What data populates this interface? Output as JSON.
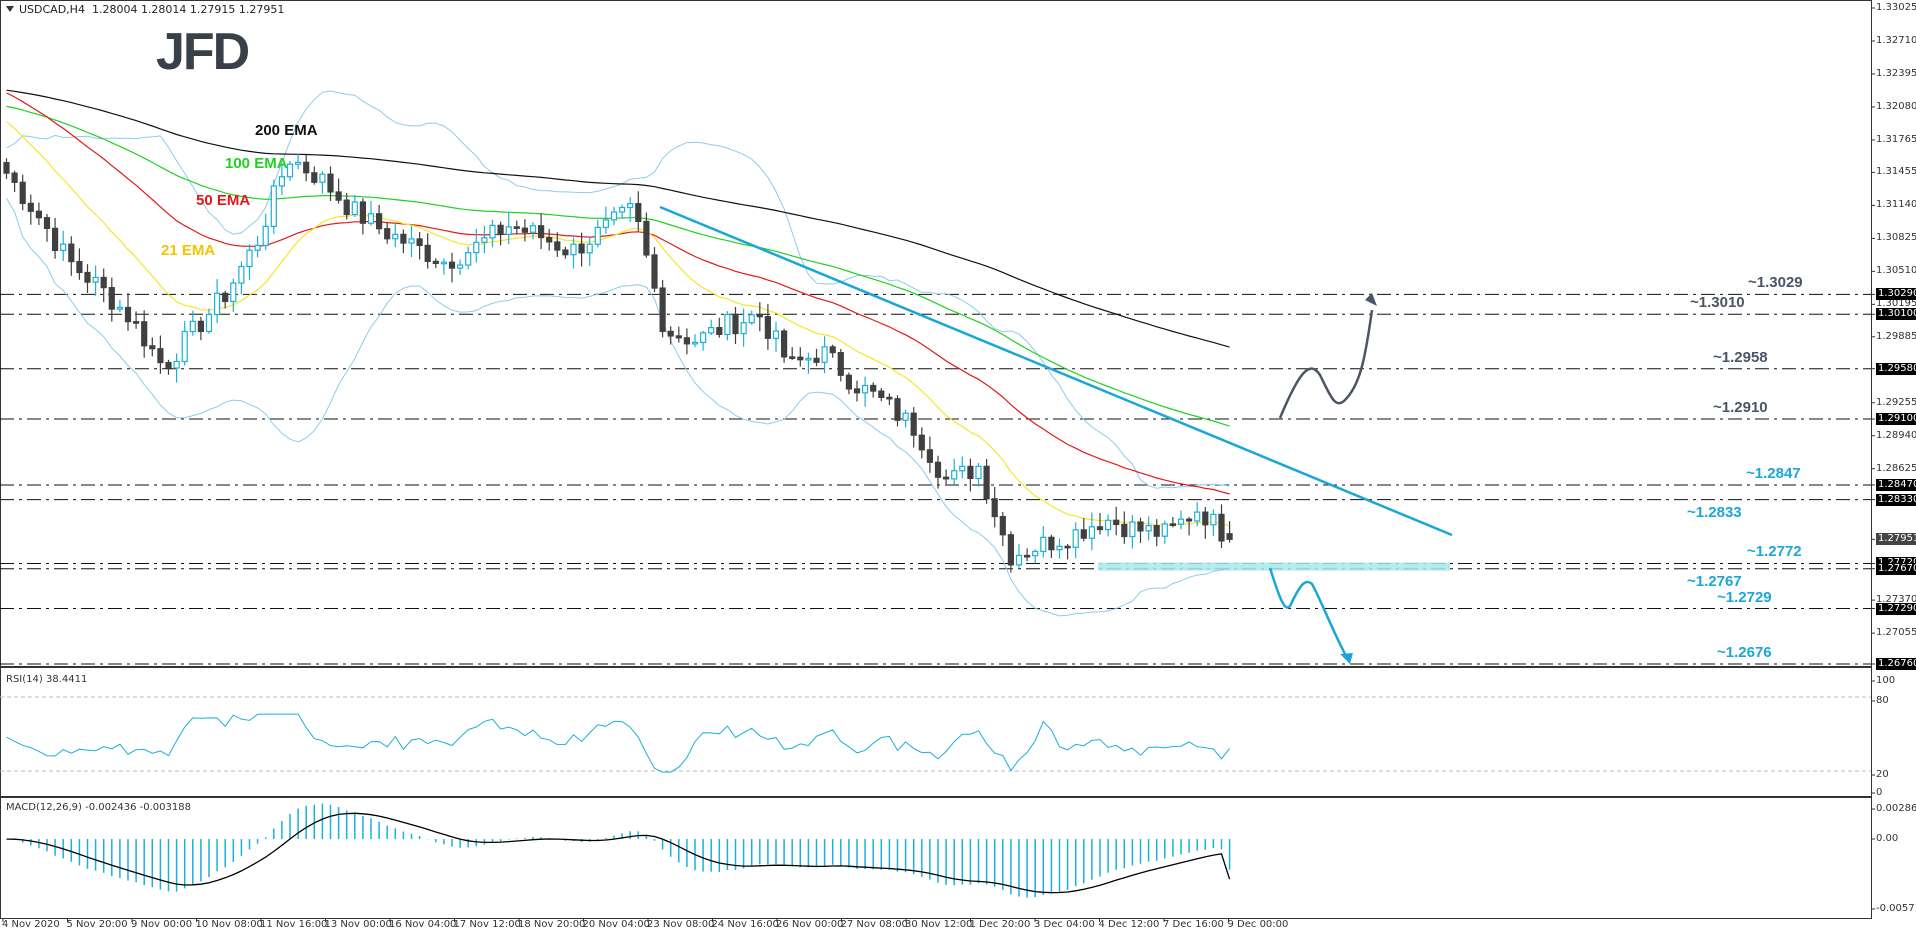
{
  "header": {
    "symbol": "USDCAD,H4",
    "ohlc": "1.28004 1.28014 1.27915 1.27951"
  },
  "logo": "JFD",
  "colors": {
    "bull": "#1ab0d8",
    "bear": "#404040",
    "ema21": "#f5e52a",
    "ema50": "#e11919",
    "ema100": "#22d022",
    "ema200": "#111111",
    "bands": "#8ecbec",
    "trendline": "#1aa7d6",
    "levels_gray": "#4b5563",
    "levels_blue": "#1aa7d6",
    "zone": "#a8e8ec",
    "rsi": "#1ab0d8",
    "macd_hist": "#1ab0d8",
    "macd_signal": "#000000"
  },
  "price_axis": {
    "ticks": [
      "1.33025",
      "1.32710",
      "1.32395",
      "1.32080",
      "1.31765",
      "1.31455",
      "1.31140",
      "1.30825",
      "1.30510",
      "1.30195",
      "1.29885",
      "1.29255",
      "1.28940",
      "1.28625",
      "1.27370",
      "1.27055"
    ],
    "boxes": [
      "1.30290",
      "1.30100",
      "1.29580",
      "1.29100",
      "1.28470",
      "1.28330",
      "1.27720",
      "1.27670",
      "1.27290",
      "1.26760"
    ],
    "current": "1.27951"
  },
  "rsi_pane": {
    "label": "RSI(14) 38.4411",
    "ticks": [
      "100",
      "80",
      "20",
      "0"
    ]
  },
  "macd_pane": {
    "label": "MACD(12,26,9) -0.002436 -0.003188",
    "ticks": [
      "0.002864",
      "0.00",
      "-0.005716"
    ]
  },
  "time_axis": [
    "4 Nov 2020",
    "5 Nov 20:00",
    "9 Nov 00:00",
    "10 Nov 08:00",
    "11 Nov 16:00",
    "13 Nov 00:00",
    "16 Nov 04:00",
    "17 Nov 12:00",
    "18 Nov 20:00",
    "20 Nov 04:00",
    "23 Nov 08:00",
    "24 Nov 16:00",
    "26 Nov 00:00",
    "27 Nov 08:00",
    "30 Nov 12:00",
    "1 Dec 20:00",
    "3 Dec 04:00",
    "4 Dec 12:00",
    "7 Dec 16:00",
    "9 Dec 00:00"
  ],
  "annotations": {
    "ema200": "200 EMA",
    "ema100": "100 EMA",
    "ema50": "50 EMA",
    "ema21": "21 EMA",
    "levels": [
      {
        "label": "~1.3029",
        "price": 1.3029,
        "color": "gray"
      },
      {
        "label": "~1.3010",
        "price": 1.301,
        "color": "gray"
      },
      {
        "label": "~1.2958",
        "price": 1.2958,
        "color": "gray"
      },
      {
        "label": "~1.2910",
        "price": 1.291,
        "color": "gray"
      },
      {
        "label": "~1.2847",
        "price": 1.2847,
        "color": "blue"
      },
      {
        "label": "~1.2833",
        "price": 1.2833,
        "color": "blue"
      },
      {
        "label": "~1.2772",
        "price": 1.2772,
        "color": "blue"
      },
      {
        "label": "~1.2767",
        "price": 1.2767,
        "color": "blue"
      },
      {
        "label": "~1.2729",
        "price": 1.2729,
        "color": "blue"
      },
      {
        "label": "~1.2676",
        "price": 1.2676,
        "color": "blue"
      }
    ]
  },
  "chart_data": {
    "type": "candlestick",
    "title": "USDCAD,H4",
    "xlabel": "",
    "ylabel": "",
    "ylim": [
      1.2676,
      1.33025
    ],
    "x": [
      "4 Nov 2020",
      "5 Nov 20:00",
      "9 Nov 00:00",
      "10 Nov 08:00",
      "11 Nov 16:00",
      "13 Nov 00:00",
      "16 Nov 04:00",
      "17 Nov 12:00",
      "18 Nov 20:00",
      "20 Nov 04:00",
      "23 Nov 08:00",
      "24 Nov 16:00",
      "26 Nov 00:00",
      "27 Nov 08:00",
      "30 Nov 12:00",
      "1 Dec 20:00",
      "3 Dec 04:00",
      "4 Dec 12:00",
      "7 Dec 16:00",
      "9 Dec 00:00"
    ],
    "last_ohlc": {
      "open": 1.28004,
      "high": 1.28014,
      "low": 1.27915,
      "close": 1.27951
    },
    "approx_close_path": [
      1.3145,
      1.3105,
      1.306,
      1.3035,
      1.3005,
      1.296,
      1.2995,
      1.303,
      1.308,
      1.316,
      1.314,
      1.311,
      1.309,
      1.3075,
      1.306,
      1.3075,
      1.3095,
      1.3085,
      1.307,
      1.309,
      1.311,
      1.2995,
      1.2985,
      1.3,
      1.301,
      1.296,
      1.2975,
      1.2945,
      1.2925,
      1.29,
      1.285,
      1.2865,
      1.278,
      1.279,
      1.28,
      1.2815,
      1.2805,
      1.28,
      1.2825,
      1.2795
    ],
    "series": [
      {
        "name": "200 EMA",
        "type": "line",
        "start": 1.3225,
        "end": 1.302
      },
      {
        "name": "100 EMA",
        "type": "line",
        "start": 1.321,
        "end": 1.294
      },
      {
        "name": "50 EMA",
        "type": "line",
        "start": 1.3225,
        "end": 1.288
      },
      {
        "name": "21 EMA",
        "type": "line",
        "start": 1.32,
        "end": 1.2815
      },
      {
        "name": "Downtrend line",
        "type": "line",
        "from": {
          "x": "23 Nov 08:00",
          "y": 1.3115
        },
        "to": {
          "x": "extension",
          "y": 1.28
        }
      }
    ],
    "horizontal_levels": [
      1.3029,
      1.301,
      1.2958,
      1.291,
      1.2847,
      1.2833,
      1.2772,
      1.2767,
      1.2729,
      1.2676
    ],
    "support_zone": [
      1.2767,
      1.2772
    ],
    "indicators": {
      "rsi": {
        "period": 14,
        "value": 38.4411,
        "levels": [
          20,
          80
        ],
        "range": [
          0,
          100
        ]
      },
      "macd": {
        "params": [
          12,
          26,
          9
        ],
        "macd": -0.002436,
        "signal": -0.003188,
        "range": [
          -0.005716,
          0.002864
        ]
      }
    }
  }
}
